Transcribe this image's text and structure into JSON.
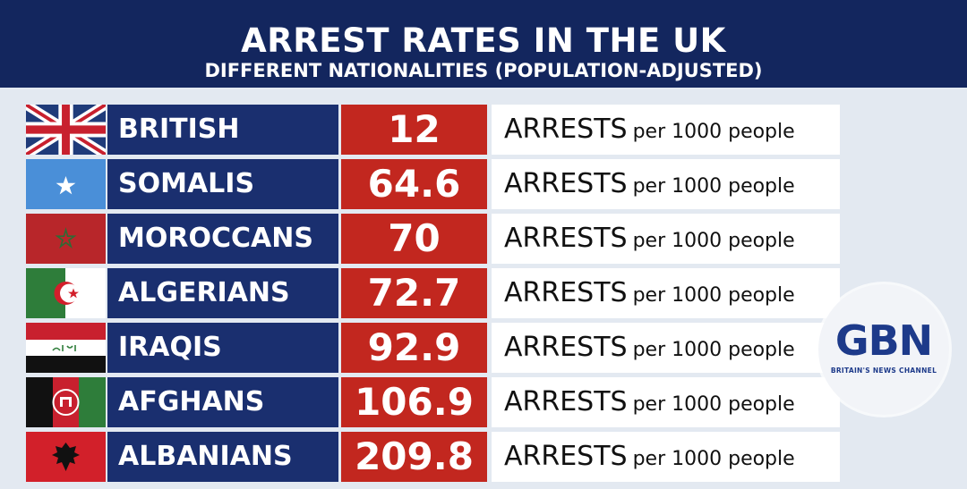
{
  "header": {
    "title": "ARREST RATES IN THE UK",
    "subtitle": "DIFFERENT NATIONALITIES (POPULATION-ADJUSTED)"
  },
  "chart_data": {
    "type": "table",
    "title": "ARREST RATES IN THE UK",
    "subtitle": "DIFFERENT NATIONALITIES (POPULATION-ADJUSTED)",
    "unit_main": "ARRESTS",
    "unit_small": "per 1000 people",
    "rows": [
      {
        "nationality": "BRITISH",
        "value": "12",
        "flag": "uk-flag-icon"
      },
      {
        "nationality": "SOMALIS",
        "value": "64.6",
        "flag": "somalia-flag-icon"
      },
      {
        "nationality": "MOROCCANS",
        "value": "70",
        "flag": "morocco-flag-icon"
      },
      {
        "nationality": "ALGERIANS",
        "value": "72.7",
        "flag": "algeria-flag-icon"
      },
      {
        "nationality": "IRAQIS",
        "value": "92.9",
        "flag": "iraq-flag-icon"
      },
      {
        "nationality": "AFGHANS",
        "value": "106.9",
        "flag": "afghanistan-flag-icon"
      },
      {
        "nationality": "ALBANIANS",
        "value": "209.8",
        "flag": "albania-flag-icon"
      }
    ]
  },
  "logo": {
    "text": "GBN",
    "tagline": "BRITAIN'S NEWS CHANNEL"
  },
  "colors": {
    "header": "#13265e",
    "name_cell": "#1a2f6f",
    "value_cell": "#c2271f",
    "unit_cell": "#ffffff"
  }
}
